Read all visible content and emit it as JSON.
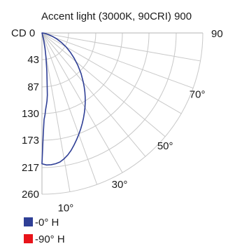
{
  "chart_data": {
    "type": "polar",
    "title": "Accent light (3000K, 90CRI) 900",
    "radial_axis": {
      "unit_label": "CD",
      "ticks": [
        0,
        43,
        87,
        130,
        173,
        217,
        260
      ],
      "max": 260
    },
    "angle_axis": {
      "labeled_ticks": [
        "10°",
        "30°",
        "50°",
        "70°",
        "90"
      ],
      "labeled_tick_values": [
        10,
        30,
        50,
        70,
        90
      ],
      "grid_step_deg": 10
    },
    "series": [
      {
        "name": "-0° H",
        "color": "#2f3f96",
        "points": [
          [
            0,
            211
          ],
          [
            2,
            213
          ],
          [
            4,
            213
          ],
          [
            6,
            212
          ],
          [
            8,
            210
          ],
          [
            10,
            206
          ],
          [
            12,
            201
          ],
          [
            14,
            195
          ],
          [
            16,
            188
          ],
          [
            18,
            181
          ],
          [
            20,
            174
          ],
          [
            22,
            167
          ],
          [
            24,
            160
          ],
          [
            26,
            153
          ],
          [
            28,
            146
          ],
          [
            30,
            139
          ],
          [
            32,
            132
          ],
          [
            34,
            125
          ],
          [
            36,
            118
          ],
          [
            38,
            111
          ],
          [
            40,
            104
          ],
          [
            44,
            91
          ],
          [
            48,
            78
          ],
          [
            52,
            66
          ],
          [
            56,
            55
          ],
          [
            60,
            45
          ],
          [
            64,
            35
          ],
          [
            68,
            26
          ],
          [
            72,
            18
          ],
          [
            76,
            11
          ],
          [
            80,
            6
          ],
          [
            84,
            3
          ],
          [
            88,
            1
          ],
          [
            90,
            0
          ]
        ],
        "negative_side_points": [
          [
            -2,
            165
          ],
          [
            -4,
            140
          ],
          [
            -6,
            133
          ],
          [
            -8,
            124
          ],
          [
            -10,
            118
          ],
          [
            -12,
            112
          ],
          [
            -14,
            103
          ],
          [
            -16,
            87
          ],
          [
            -20,
            66
          ],
          [
            -25,
            44
          ],
          [
            -30,
            28
          ],
          [
            -35,
            14
          ],
          [
            -40,
            4
          ],
          [
            -45,
            0
          ]
        ]
      },
      {
        "name": "-90° H",
        "color": "#e8141a",
        "points": []
      }
    ],
    "legend": {
      "placement": "bottom-left",
      "items": [
        "-0° H",
        "-90° H"
      ]
    }
  }
}
